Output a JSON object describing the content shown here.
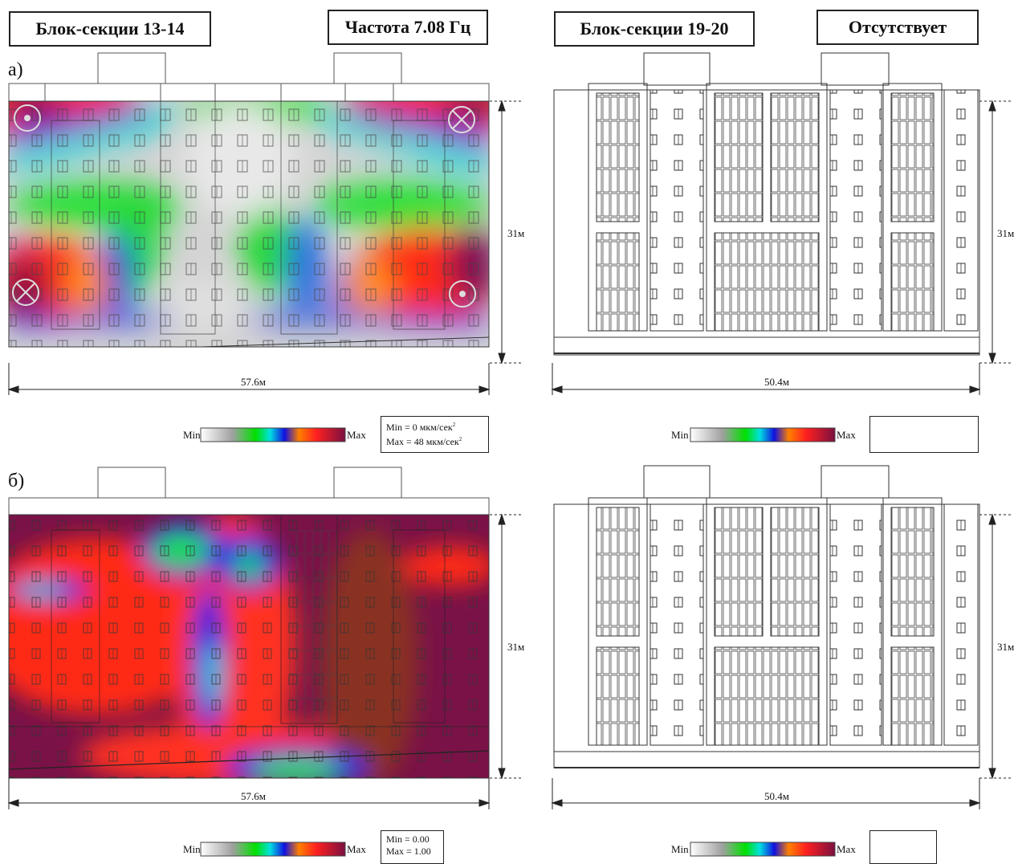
{
  "header": {
    "left_section": "Блок-секции 13-14",
    "frequency": "Частота 7.08 Гц",
    "right_section": "Блок-секции 19-20",
    "right_status": "Отсутствует"
  },
  "panels": {
    "a_label": "а)",
    "b_label": "б)"
  },
  "dimensions": {
    "left_width": "57.6м",
    "right_width": "50.4м",
    "left_height": "31м",
    "right_height": "31м"
  },
  "legend": {
    "min_label": "Min",
    "max_label": "Max",
    "top_scale_min": "Min = 0 мкм/сек",
    "top_scale_max": "Max = 48 мкм/сек",
    "top_scale_sup": "2",
    "bottom_scale_min": "Min = 0.00",
    "bottom_scale_max": "Max = 1.00",
    "gradient": [
      "#ffffff",
      "#b0b0b0",
      "#00e000",
      "#00e0e0",
      "#1010e0",
      "#ff2020",
      "#ff8000",
      "#7a1040"
    ]
  },
  "markers": {
    "top_left": "dot",
    "top_right": "cross",
    "bottom_left": "cross",
    "bottom_right": "dot"
  }
}
